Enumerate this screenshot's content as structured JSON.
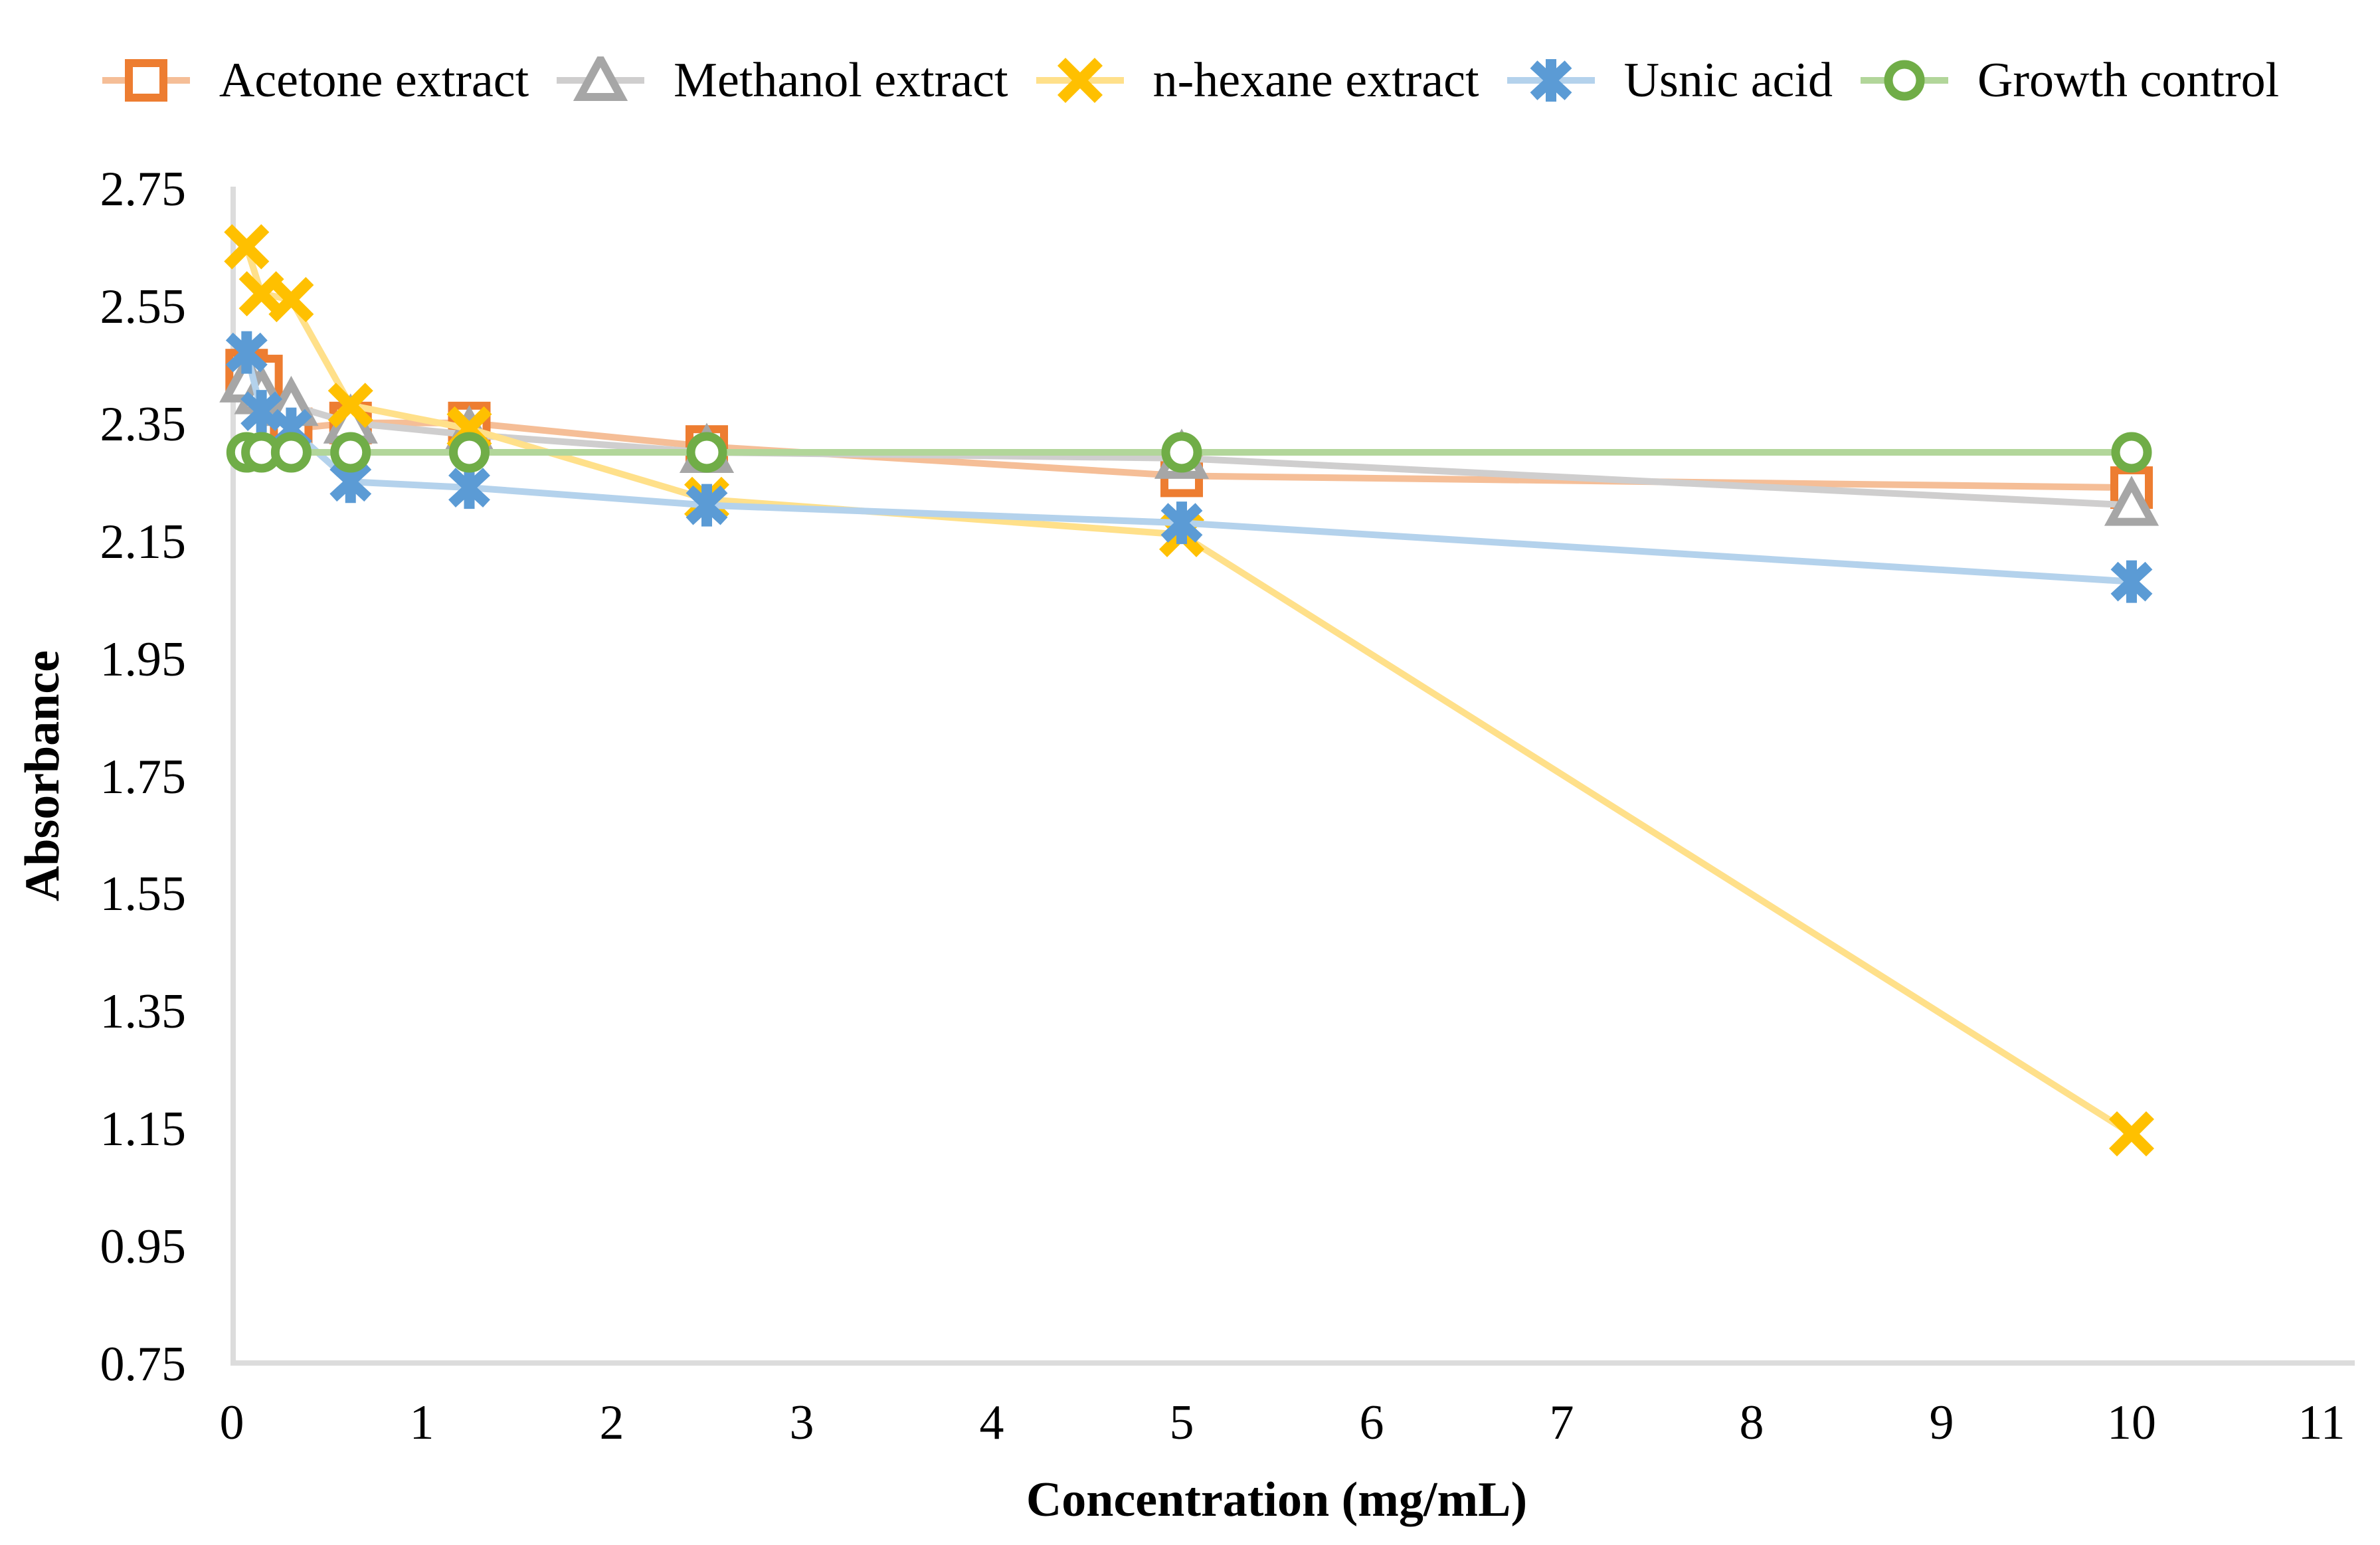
{
  "chart_data": {
    "type": "line",
    "title": "",
    "xlabel": "Concentration (mg/mL)",
    "ylabel": "Absorbance",
    "xlim": [
      0,
      11
    ],
    "ylim": [
      0.75,
      2.75
    ],
    "grid": false,
    "legend_position": "top",
    "axis_color": "#DCDCDC",
    "text_color": "#000000",
    "x_ticks": [
      "0",
      "1",
      "2",
      "3",
      "4",
      "5",
      "6",
      "7",
      "8",
      "9",
      "10",
      "11"
    ],
    "y_ticks": [
      "2.75",
      "2.55",
      "2.35",
      "2.15",
      "1.95",
      "1.75",
      "1.55",
      "1.35",
      "1.15",
      "0.95",
      "0.75"
    ],
    "x": [
      0.078,
      0.156,
      0.3125,
      0.625,
      1.25,
      2.5,
      5,
      10
    ],
    "series": [
      {
        "name": "Acetone extract",
        "marker": "open-square",
        "color": "#ED7D31",
        "line_color": "#F5BE97",
        "values": [
          2.44,
          2.43,
          2.34,
          2.35,
          2.35,
          2.31,
          2.26,
          2.24
        ]
      },
      {
        "name": "Methanol extract",
        "marker": "open-triangle",
        "color": "#A6A6A6",
        "line_color": "#CFCECE",
        "values": [
          2.42,
          2.4,
          2.38,
          2.35,
          2.33,
          2.3,
          2.29,
          2.21
        ]
      },
      {
        "name": "n-hexane extract",
        "marker": "x-cross",
        "color": "#FFC000",
        "line_color": "#FFE08A",
        "values": [
          2.65,
          2.57,
          2.56,
          2.38,
          2.34,
          2.22,
          2.16,
          1.14
        ]
      },
      {
        "name": "Usnic acid",
        "marker": "asterisk-star",
        "color": "#5B9BD5",
        "line_color": "#B4D2EC",
        "values": [
          2.47,
          2.37,
          2.34,
          2.25,
          2.24,
          2.21,
          2.18,
          2.08
        ]
      },
      {
        "name": "Growth control",
        "marker": "open-circle",
        "color": "#70AD47",
        "line_color": "#B2D69A",
        "values": [
          2.3,
          2.3,
          2.3,
          2.3,
          2.3,
          2.3,
          2.3,
          2.3
        ]
      }
    ]
  }
}
